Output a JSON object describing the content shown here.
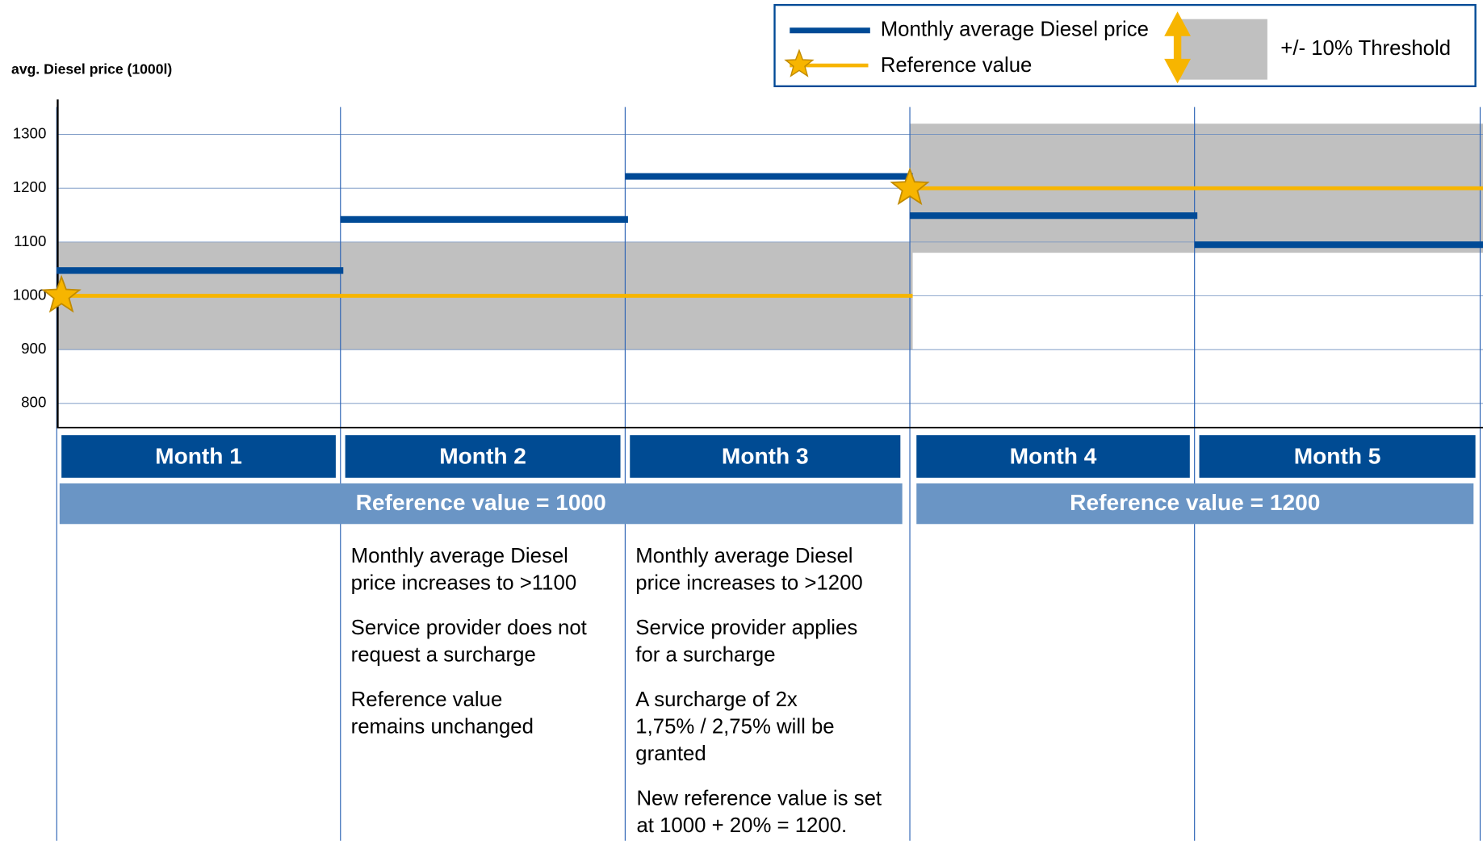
{
  "chart_data": {
    "type": "step",
    "y_axis_label": "avg. Diesel price (1000l)",
    "categories": [
      "Month 1",
      "Month 2",
      "Month 3",
      "Month 4",
      "Month 5"
    ],
    "ylim": [
      755,
      1365
    ],
    "yticks": [
      800,
      900,
      1000,
      1100,
      1200,
      1300
    ],
    "grid": true,
    "series": [
      {
        "name": "Monthly average Diesel price",
        "color": "#004a96",
        "values": [
          1047,
          1142,
          1222,
          1149,
          1095
        ]
      },
      {
        "name": "Reference value",
        "color": "#f7b500",
        "values": [
          1000,
          1000,
          1000,
          1200,
          1200
        ]
      }
    ],
    "threshold": {
      "name": "+/- 10% Threshold",
      "color": "#c0c0c0",
      "low": [
        900,
        900,
        900,
        1080,
        1080
      ],
      "high": [
        1100,
        1100,
        1100,
        1320,
        1320
      ]
    },
    "reference_labels": [
      "Reference value = 1000",
      "Reference value = 1200"
    ],
    "notes": [
      [],
      [
        [
          "Monthly average Diesel",
          "price increases to >1100"
        ],
        [
          "Service provider does not",
          "request a surcharge"
        ],
        [
          "Reference value",
          "remains unchanged"
        ]
      ],
      [
        [
          "Monthly average Diesel",
          "price increases to >1200"
        ],
        [
          "Service provider applies",
          "for a surcharge"
        ],
        [
          "A surcharge of 2x",
          "1,75% / 2,75% will be",
          "granted"
        ],
        [
          "New reference value is set",
          "at 1000 + 20% = 1200."
        ]
      ],
      [],
      []
    ]
  }
}
